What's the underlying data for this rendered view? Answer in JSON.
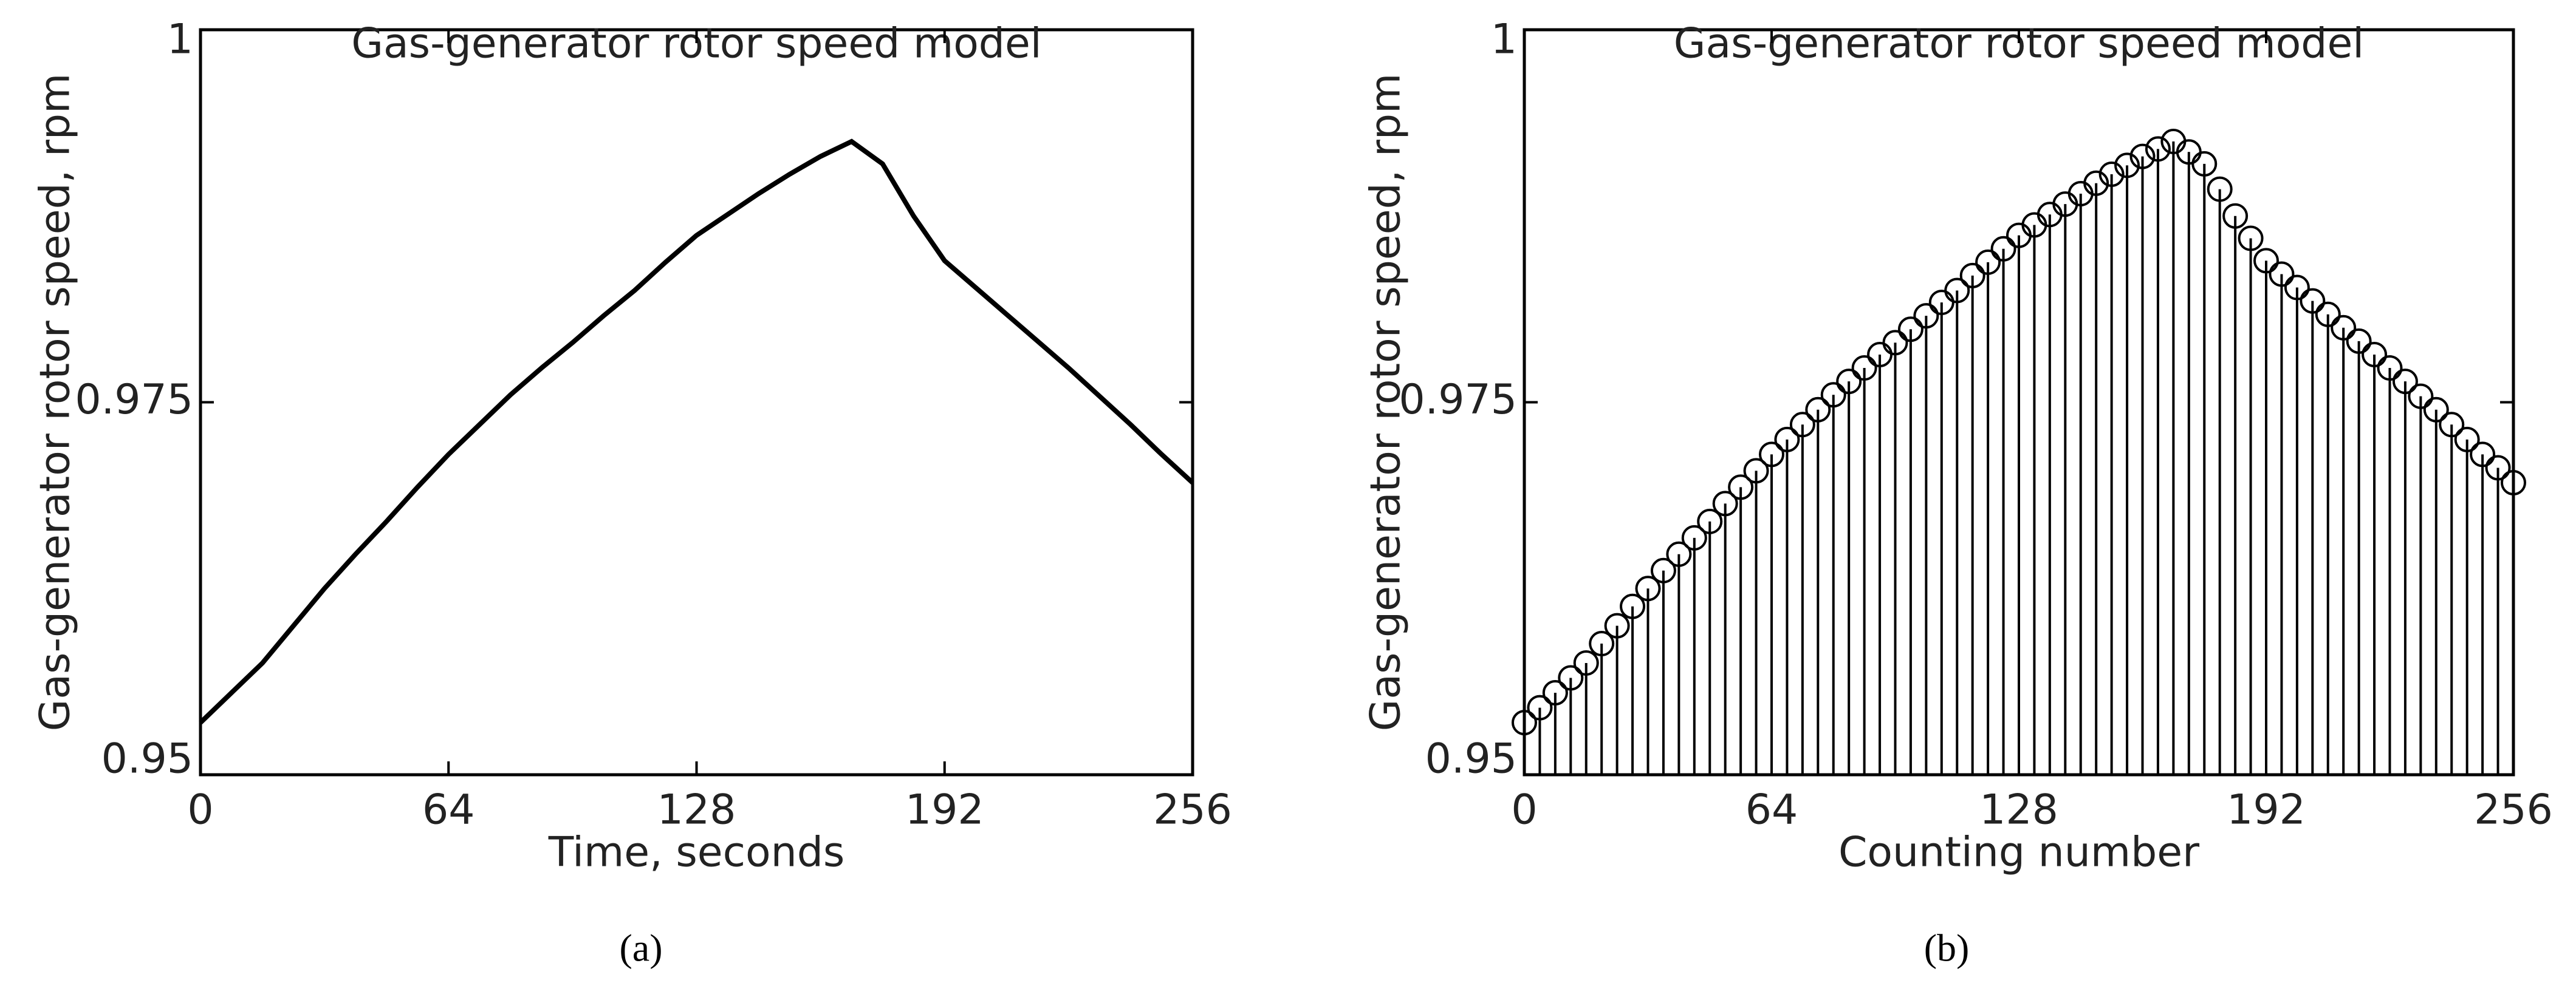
{
  "chart_data": [
    {
      "type": "line",
      "title": "Gas-generator rotor speed model",
      "xlabel": "Time, seconds",
      "ylabel": "Gas-generator rotor speed, rpm",
      "caption": "(a)",
      "color": "#000000",
      "x": [
        0,
        8,
        16,
        24,
        32,
        40,
        48,
        56,
        64,
        72,
        80,
        88,
        96,
        104,
        112,
        120,
        128,
        136,
        144,
        152,
        160,
        168,
        176,
        184,
        192,
        200,
        208,
        216,
        224,
        232,
        240,
        248,
        256
      ],
      "values": [
        0.9535,
        0.9555,
        0.9575,
        0.96,
        0.9625,
        0.9648,
        0.967,
        0.9693,
        0.9715,
        0.9735,
        0.9755,
        0.9773,
        0.979,
        0.9808,
        0.9825,
        0.9844,
        0.9862,
        0.9876,
        0.989,
        0.9903,
        0.9915,
        0.9925,
        0.991,
        0.9875,
        0.9845,
        0.9827,
        0.9809,
        0.9791,
        0.9773,
        0.9754,
        0.9735,
        0.9715,
        0.9696
      ],
      "xlim": [
        0,
        256
      ],
      "ylim": [
        0.95,
        1
      ],
      "xticks": [
        0,
        64,
        128,
        192,
        256
      ],
      "yticks": [
        0.95,
        0.975,
        1
      ]
    },
    {
      "type": "stem",
      "title": "Gas-generator rotor speed model",
      "xlabel": "Counting number",
      "ylabel": "Gas-generator rotor speed, rpm",
      "caption": "(b)",
      "color": "#000000",
      "x": [
        0,
        4,
        8,
        12,
        16,
        20,
        24,
        28,
        32,
        36,
        40,
        44,
        48,
        52,
        56,
        60,
        64,
        68,
        72,
        76,
        80,
        84,
        88,
        92,
        96,
        100,
        104,
        108,
        112,
        116,
        120,
        124,
        128,
        132,
        136,
        140,
        144,
        148,
        152,
        156,
        160,
        164,
        168,
        172,
        176,
        180,
        184,
        188,
        192,
        196,
        200,
        204,
        208,
        212,
        216,
        220,
        224,
        228,
        232,
        236,
        240,
        244,
        248,
        252,
        256
      ],
      "values": [
        0.9535,
        0.9545,
        0.9555,
        0.9565,
        0.9575,
        0.9588,
        0.96,
        0.9613,
        0.9625,
        0.9637,
        0.9648,
        0.9659,
        0.967,
        0.9682,
        0.9693,
        0.9704,
        0.9715,
        0.9725,
        0.9735,
        0.9745,
        0.9755,
        0.9764,
        0.9773,
        0.9782,
        0.979,
        0.9799,
        0.9808,
        0.9817,
        0.9825,
        0.9835,
        0.9844,
        0.9853,
        0.9862,
        0.9869,
        0.9876,
        0.9883,
        0.989,
        0.9897,
        0.9903,
        0.9909,
        0.9915,
        0.992,
        0.9925,
        0.9918,
        0.991,
        0.9893,
        0.9875,
        0.986,
        0.9845,
        0.9836,
        0.9827,
        0.9818,
        0.9809,
        0.98,
        0.9791,
        0.9782,
        0.9773,
        0.9764,
        0.9754,
        0.9745,
        0.9735,
        0.9725,
        0.9715,
        0.9706,
        0.9696
      ],
      "xlim": [
        0,
        256
      ],
      "ylim": [
        0.95,
        1
      ],
      "xticks": [
        0,
        64,
        128,
        192,
        256
      ],
      "yticks": [
        0.95,
        0.975,
        1
      ]
    }
  ]
}
